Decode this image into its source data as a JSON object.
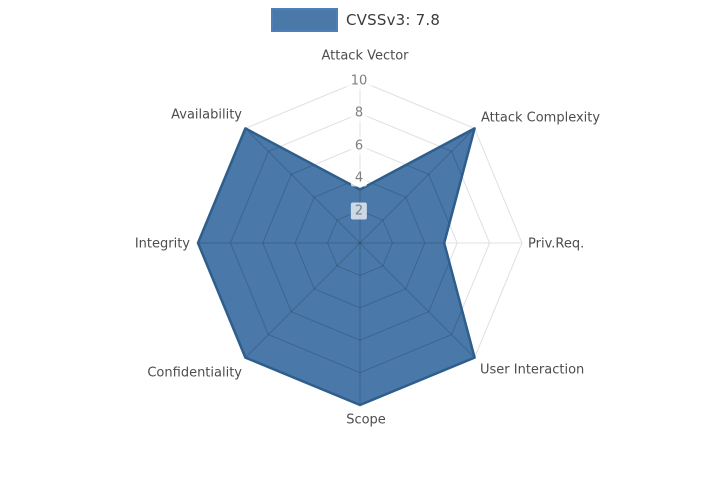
{
  "legend": {
    "label": "CVSSv3: 7.8"
  },
  "chart_data": {
    "type": "radar",
    "title": "CVSSv3: 7.8",
    "categories": [
      "Attack Vector",
      "Attack Complexity",
      "Priv.Req.",
      "User Interaction",
      "Scope",
      "Confidentiality",
      "Integrity",
      "Availability"
    ],
    "series": [
      {
        "name": "CVSSv3: 7.8",
        "values": [
          3.3,
          10,
          5.2,
          10,
          10,
          10,
          10,
          10
        ]
      }
    ],
    "ticks": [
      2,
      4,
      6,
      8,
      10
    ],
    "range": [
      0,
      10
    ],
    "legend_position": "top-center",
    "grid": "polygonal-web, 8 spokes, rings at ticks",
    "colors": {
      "fill": "#4a78a8",
      "stroke": "#2e5e8c",
      "grid": "#e0e0e0",
      "grid_over_fill": "rgba(0,0,0,0.16)",
      "tick_text": "#7f7f7f",
      "label_text": "#4d4d4d",
      "legend_border": "#4d80b8",
      "legend_text": "#3c3c3c"
    }
  }
}
